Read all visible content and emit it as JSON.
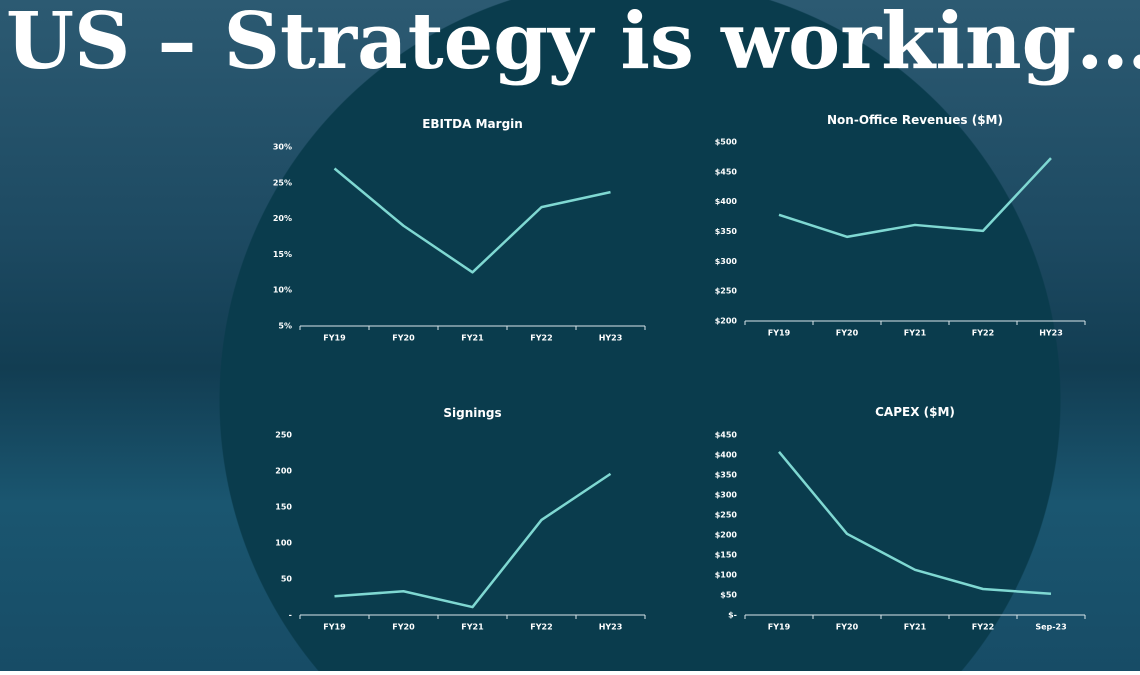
{
  "title": "US – Strategy is working…",
  "chart_data": [
    {
      "type": "line",
      "title": "EBITDA Margin",
      "categories": [
        "FY19",
        "FY20",
        "FY21",
        "FY22",
        "HY23"
      ],
      "values": [
        27,
        19,
        12.5,
        21.6,
        23.7
      ],
      "color": "#7fd8d2",
      "ylim": [
        5,
        30
      ],
      "yticks": [
        {
          "value": 5,
          "label": "5%"
        },
        {
          "value": 10,
          "label": "10%"
        },
        {
          "value": 15,
          "label": "15%"
        },
        {
          "value": 20,
          "label": "20%"
        },
        {
          "value": 25,
          "label": "25%"
        },
        {
          "value": 30,
          "label": "30%"
        }
      ],
      "grid": false
    },
    {
      "type": "line",
      "title": "Non-Office Revenues ($M)",
      "categories": [
        "FY19",
        "FY20",
        "FY21",
        "FY22",
        "HY23"
      ],
      "values": [
        378,
        341,
        361,
        351,
        473
      ],
      "color": "#7fd8d2",
      "ylim": [
        200,
        500
      ],
      "yticks": [
        {
          "value": 200,
          "label": "$200"
        },
        {
          "value": 250,
          "label": "$250"
        },
        {
          "value": 300,
          "label": "$300"
        },
        {
          "value": 350,
          "label": "$350"
        },
        {
          "value": 400,
          "label": "$400"
        },
        {
          "value": 450,
          "label": "$450"
        },
        {
          "value": 500,
          "label": "$500"
        }
      ],
      "grid": false
    },
    {
      "type": "line",
      "title": "Signings",
      "categories": [
        "FY19",
        "FY20",
        "FY21",
        "FY22",
        "HY23"
      ],
      "values": [
        26,
        33,
        11,
        132,
        196
      ],
      "color": "#7fd8d2",
      "ylim": [
        0,
        250
      ],
      "yticks": [
        {
          "value": 0,
          "label": "-"
        },
        50,
        100,
        150,
        200,
        250
      ],
      "grid": false
    },
    {
      "type": "line",
      "title": "CAPEX ($M)",
      "categories": [
        "FY19",
        "FY20",
        "FY21",
        "FY22",
        "Sep-23"
      ],
      "values": [
        408,
        203,
        113,
        65,
        53
      ],
      "color": "#7fd8d2",
      "ylim": [
        0,
        450
      ],
      "yticks": [
        {
          "value": 0,
          "label": "$-"
        },
        {
          "value": 50,
          "label": "$50"
        },
        {
          "value": 100,
          "label": "$100"
        },
        {
          "value": 150,
          "label": "$150"
        },
        {
          "value": 200,
          "label": "$200"
        },
        {
          "value": 250,
          "label": "$250"
        },
        {
          "value": 300,
          "label": "$300"
        },
        {
          "value": 350,
          "label": "$350"
        },
        {
          "value": 400,
          "label": "$400"
        },
        {
          "value": 450,
          "label": "$450"
        }
      ],
      "grid": false
    }
  ]
}
